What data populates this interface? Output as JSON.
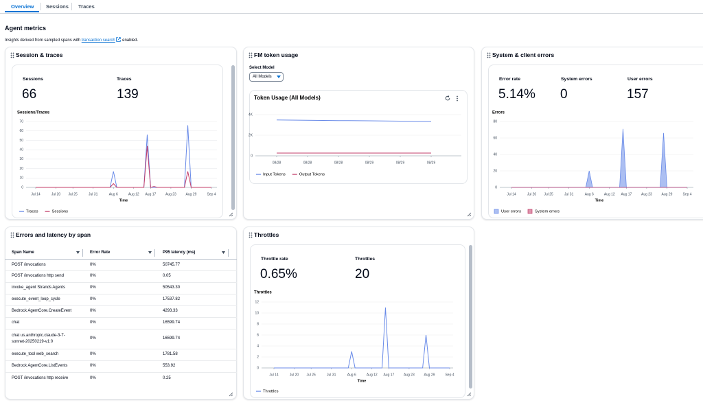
{
  "tabs": [
    "Overview",
    "Sessions",
    "Traces"
  ],
  "heading": "Agent metrics",
  "subtitle": {
    "before": "Insights derived from sampled spans with",
    "link": "transaction search",
    "after": "enabled."
  },
  "panels": {
    "sessions": {
      "title": "Session & traces",
      "stats": [
        {
          "label": "Sessions",
          "value": 66
        },
        {
          "label": "Traces",
          "value": 139
        }
      ]
    },
    "tokens": {
      "title": "FM token usage",
      "select_label": "Select Model",
      "select_value": "All Models"
    },
    "errors": {
      "title": "System & client errors",
      "stats": [
        {
          "label": "Error rate",
          "value": "5.14%"
        },
        {
          "label": "System errors",
          "value": 0
        },
        {
          "label": "User errors",
          "value": 157
        }
      ]
    },
    "spans": {
      "title": "Errors and latency by span",
      "table": {
        "columns": [
          "Span Name",
          "Error Rate",
          "P95 latency (ms)"
        ],
        "rows": [
          [
            "POST /invocations",
            "0%",
            "50745.77"
          ],
          [
            "POST /invocations http send",
            "0%",
            "0.05"
          ],
          [
            "invoke_agent Strands Agents",
            "0%",
            "50543.30"
          ],
          [
            "execute_event_loop_cycle",
            "0%",
            "17537.82"
          ],
          [
            "Bedrock AgentCore.CreateEvent",
            "0%",
            "4293.33"
          ],
          [
            "chat",
            "0%",
            "16599.74"
          ],
          [
            "chat us.anthropic.claude-3-7-sonnet-20250219-v1:0",
            "0%",
            "16599.74"
          ],
          [
            "execute_tool web_search",
            "0%",
            "1781.58"
          ],
          [
            "Bedrock AgentCore.ListEvents",
            "0%",
            "553.92"
          ],
          [
            "POST /invocations http receive",
            "0%",
            "0.25"
          ]
        ]
      }
    },
    "throttles": {
      "title": "Throttles",
      "stats": [
        {
          "label": "Throttle rate",
          "value": "0.65%"
        },
        {
          "label": "Throttles",
          "value": 20
        }
      ]
    }
  },
  "chart_data": [
    {
      "type": "line",
      "title": "Sessions/Traces",
      "x_label": "Time",
      "categories": [
        "Jul 14",
        null,
        null,
        null,
        null,
        null,
        "Jul 20",
        null,
        null,
        null,
        null,
        "Jul 25",
        null,
        null,
        null,
        null,
        null,
        "Jul 31",
        null,
        null,
        null,
        null,
        null,
        "Aug 6",
        null,
        null,
        null,
        null,
        null,
        "Aug 12",
        null,
        null,
        null,
        null,
        "Aug 17",
        null,
        null,
        null,
        null,
        null,
        "Aug 23",
        null,
        null,
        null,
        null,
        null,
        "Aug 29",
        null,
        null,
        null,
        null,
        null,
        "Sep 4"
      ],
      "series": [
        {
          "name": "Traces",
          "color": "#688ae8",
          "values": [
            0,
            0,
            0,
            0,
            0,
            0,
            0,
            0,
            0,
            0,
            0,
            0,
            0,
            0,
            0,
            0,
            0,
            0,
            0,
            0,
            0,
            0,
            0,
            17,
            0,
            0,
            0,
            0,
            0,
            0,
            0,
            0,
            0,
            56,
            0,
            0,
            0,
            0,
            0,
            0,
            0,
            0,
            0,
            0,
            0,
            66,
            0,
            0,
            0,
            0,
            0,
            0,
            0
          ]
        },
        {
          "name": "Sessions",
          "color": "#c33d69",
          "values": [
            0,
            0,
            0,
            0,
            0,
            0,
            0,
            0,
            0,
            0,
            0,
            0,
            0,
            0,
            0,
            0,
            0,
            0,
            0,
            0,
            0,
            0,
            0,
            4,
            0,
            0,
            0,
            0,
            0,
            0,
            0,
            0,
            0,
            44,
            0,
            1,
            0,
            0,
            0,
            0,
            0,
            0,
            0,
            0,
            0,
            17,
            0,
            0,
            0,
            0,
            0,
            0,
            0
          ]
        }
      ],
      "ylim": [
        0,
        70
      ],
      "yticks": [
        0,
        10,
        20,
        30,
        40,
        50,
        60,
        70
      ],
      "grid": true,
      "legend": "bottom"
    },
    {
      "type": "line",
      "title": "Token Usage (All Models)",
      "categories": [
        "08/28",
        "08/28",
        "08/28",
        "08/29",
        "08/29",
        "08/29"
      ],
      "series": [
        {
          "name": "Input Tokens",
          "color": "#688ae8",
          "values": [
            3480,
            3450,
            3420,
            3400,
            3370,
            3340
          ]
        },
        {
          "name": "Output Tokens",
          "color": "#c33d69",
          "values": [
            270,
            270,
            270,
            270,
            270,
            270
          ]
        }
      ],
      "ylim": [
        0,
        4500
      ],
      "yticks": [
        0,
        {
          "value": 2000,
          "label": "2K"
        },
        {
          "value": 4000,
          "label": "4K"
        }
      ],
      "grid": true,
      "legend": "bottom"
    },
    {
      "type": "area",
      "title": "Errors",
      "x_label": "Time",
      "categories": [
        "Jul 14",
        null,
        null,
        null,
        null,
        null,
        "Jul 20",
        null,
        null,
        null,
        null,
        "Jul 25",
        null,
        null,
        null,
        null,
        null,
        "Jul 31",
        null,
        null,
        null,
        null,
        null,
        "Aug 6",
        null,
        null,
        null,
        null,
        null,
        "Aug 12",
        null,
        null,
        null,
        null,
        "Aug 17",
        null,
        null,
        null,
        null,
        null,
        "Aug 23",
        null,
        null,
        null,
        null,
        null,
        "Aug 29",
        null,
        null,
        null,
        null,
        null,
        "Sep 4"
      ],
      "series": [
        {
          "name": "User errors",
          "color": "#688ae8",
          "values": [
            0,
            0,
            0,
            0,
            0,
            0,
            0,
            0,
            0,
            0,
            0,
            0,
            0,
            0,
            0,
            0,
            0,
            0,
            0,
            0,
            0,
            0,
            0,
            20,
            0,
            0,
            0,
            0,
            0,
            0,
            0,
            0,
            0,
            71,
            0,
            0,
            0,
            0,
            0,
            0,
            0,
            0,
            0,
            0,
            0,
            66,
            0,
            0,
            0,
            0,
            0,
            0,
            0
          ]
        },
        {
          "name": "System errors",
          "color": "#c33d69",
          "values": [
            0,
            0,
            0,
            0,
            0,
            0,
            0,
            0,
            0,
            0,
            0,
            0,
            0,
            0,
            0,
            0,
            0,
            0,
            0,
            0,
            0,
            0,
            0,
            0,
            0,
            0,
            0,
            0,
            0,
            0,
            0,
            0,
            0,
            0,
            0,
            0,
            0,
            0,
            0,
            0,
            0,
            0,
            0,
            0,
            0,
            0,
            0,
            0,
            0,
            0,
            0,
            0,
            0
          ]
        }
      ],
      "ylim": [
        0,
        80
      ],
      "yticks": [
        0,
        20,
        40,
        60,
        80
      ],
      "grid": true,
      "legend": "bottom"
    },
    {
      "type": "line",
      "title": "Throttles",
      "x_label": "Time",
      "categories": [
        "Jul 14",
        null,
        null,
        null,
        null,
        null,
        "Jul 20",
        null,
        null,
        null,
        null,
        "Jul 25",
        null,
        null,
        null,
        null,
        null,
        "Jul 31",
        null,
        null,
        null,
        null,
        null,
        "Aug 6",
        null,
        null,
        null,
        null,
        null,
        "Aug 12",
        null,
        null,
        null,
        null,
        "Aug 17",
        null,
        null,
        null,
        null,
        null,
        "Aug 23",
        null,
        null,
        null,
        null,
        null,
        "Aug 29",
        null,
        null,
        null,
        null,
        null,
        "Sep 4"
      ],
      "series": [
        {
          "name": "Throttles",
          "color": "#688ae8",
          "values": [
            0,
            0,
            0,
            0,
            0,
            0,
            0,
            0,
            0,
            0,
            0,
            0,
            0,
            0,
            0,
            0,
            0,
            0,
            0,
            0,
            0,
            0,
            0,
            3,
            0,
            0,
            0,
            0,
            0,
            0,
            0,
            0,
            0,
            11,
            0,
            0,
            0,
            0,
            0,
            0,
            0,
            0,
            0,
            0,
            0,
            6,
            0,
            0,
            0,
            0,
            0,
            0,
            0
          ]
        }
      ],
      "ylim": [
        0,
        12
      ],
      "yticks": [
        0,
        2,
        4,
        6,
        8,
        10,
        12
      ],
      "grid": true,
      "legend": "bottom"
    }
  ]
}
